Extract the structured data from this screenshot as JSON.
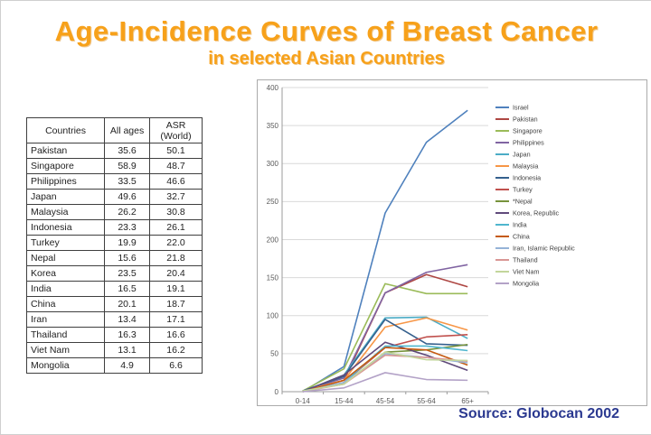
{
  "title": {
    "text": "Age-Incidence Curves of Breast Cancer",
    "subtitle": "in selected Asian Countries",
    "color": "#F7A11A"
  },
  "source": {
    "text": "Source: Globocan 2002",
    "color": "#2B3990"
  },
  "table": {
    "headers": [
      "Countries",
      "All ages",
      "ASR (World)"
    ],
    "rows": [
      [
        "Pakistan",
        "35.6",
        "50.1"
      ],
      [
        "Singapore",
        "58.9",
        "48.7"
      ],
      [
        "Philippines",
        "33.5",
        "46.6"
      ],
      [
        "Japan",
        "49.6",
        "32.7"
      ],
      [
        "Malaysia",
        "26.2",
        "30.8"
      ],
      [
        "Indonesia",
        "23.3",
        "26.1"
      ],
      [
        "Turkey",
        "19.9",
        "22.0"
      ],
      [
        "Nepal",
        "15.6",
        "21.8"
      ],
      [
        "Korea",
        "23.5",
        "20.4"
      ],
      [
        "India",
        "16.5",
        "19.1"
      ],
      [
        "China",
        "20.1",
        "18.7"
      ],
      [
        "Iran",
        "13.4",
        "17.1"
      ],
      [
        "Thailand",
        "16.3",
        "16.6"
      ],
      [
        "Viet Nam",
        "13.1",
        "16.2"
      ],
      [
        "Mongolia",
        "4.9",
        "6.6"
      ]
    ]
  },
  "chart_data": {
    "type": "line",
    "title": "",
    "xlabel": "",
    "ylabel": "",
    "categories": [
      "0-14",
      "15-44",
      "45-54",
      "55-64",
      "65+"
    ],
    "ylim": [
      0,
      400
    ],
    "ytick_step": 50,
    "grid": true,
    "legend_position": "right",
    "series": [
      {
        "name": "Israel",
        "color": "#4F81BD",
        "values": [
          0,
          33,
          235,
          328,
          370
        ]
      },
      {
        "name": "Pakistan",
        "color": "#AE4743",
        "values": [
          1,
          15,
          130,
          154,
          138
        ]
      },
      {
        "name": "Singapore",
        "color": "#9BBB59",
        "values": [
          1,
          30,
          142,
          129,
          129
        ]
      },
      {
        "name": "Philippines",
        "color": "#8064A2",
        "values": [
          1,
          18,
          130,
          157,
          167
        ]
      },
      {
        "name": "Japan",
        "color": "#4BACC6",
        "values": [
          0,
          22,
          97,
          98,
          70
        ]
      },
      {
        "name": "Malaysia",
        "color": "#F79646",
        "values": [
          1,
          15,
          85,
          97,
          81
        ]
      },
      {
        "name": "Indonesia",
        "color": "#35608D",
        "values": [
          1,
          20,
          95,
          63,
          61
        ]
      },
      {
        "name": "Turkey",
        "color": "#C0504D",
        "values": [
          0,
          12,
          58,
          72,
          75
        ]
      },
      {
        "name": "*Nepal",
        "color": "#77933C",
        "values": [
          1,
          10,
          52,
          55,
          62
        ]
      },
      {
        "name": "Korea, Republic",
        "color": "#604A7B",
        "values": [
          0,
          22,
          65,
          48,
          28
        ]
      },
      {
        "name": "India",
        "color": "#4FB6CE",
        "values": [
          0,
          12,
          60,
          60,
          54
        ]
      },
      {
        "name": "China",
        "color": "#C55A11",
        "values": [
          0,
          15,
          58,
          55,
          35
        ]
      },
      {
        "name": "Iran, Islamic Republic",
        "color": "#95B3D7",
        "values": [
          0,
          12,
          50,
          45,
          38
        ]
      },
      {
        "name": "Thailand",
        "color": "#D99694",
        "values": [
          0,
          10,
          48,
          45,
          40
        ]
      },
      {
        "name": "Viet Nam",
        "color": "#C3D69B",
        "values": [
          1,
          10,
          52,
          42,
          41
        ]
      },
      {
        "name": "Mongolia",
        "color": "#B3A2C7",
        "values": [
          0,
          5,
          25,
          16,
          15
        ]
      }
    ]
  }
}
